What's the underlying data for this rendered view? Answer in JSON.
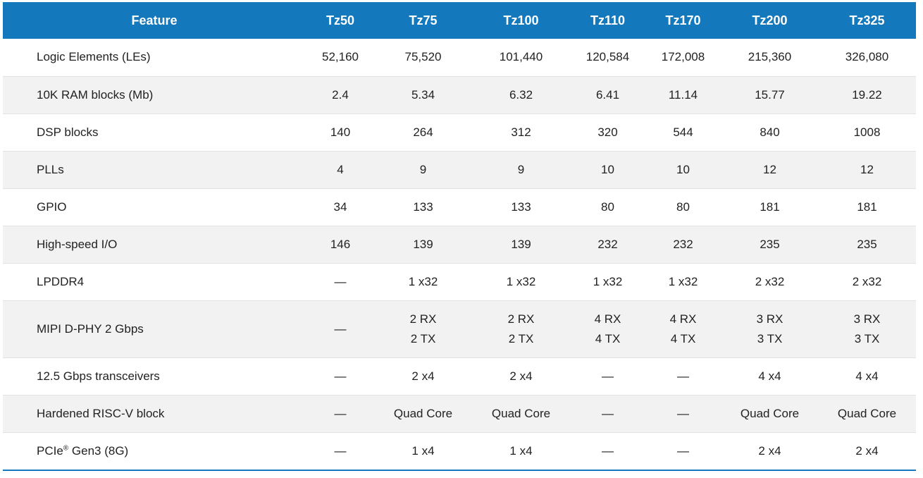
{
  "columns": [
    "Feature",
    "Tz50",
    "Tz75",
    "Tz100",
    "Tz110",
    "Tz170",
    "Tz200",
    "Tz325"
  ],
  "rows": [
    {
      "feature": "Logic Elements (LEs)",
      "values": [
        "52,160",
        "75,520",
        "101,440",
        "120,584",
        "172,008",
        "215,360",
        "326,080"
      ]
    },
    {
      "feature": "10K RAM blocks (Mb)",
      "values": [
        "2.4",
        "5.34",
        "6.32",
        "6.41",
        "11.14",
        "15.77",
        "19.22"
      ]
    },
    {
      "feature": "DSP blocks",
      "values": [
        "140",
        "264",
        "312",
        "320",
        "544",
        "840",
        "1008"
      ]
    },
    {
      "feature": "PLLs",
      "values": [
        "4",
        "9",
        "9",
        "10",
        "10",
        "12",
        "12"
      ]
    },
    {
      "feature": "GPIO",
      "values": [
        "34",
        "133",
        "133",
        "80",
        "80",
        "181",
        "181"
      ]
    },
    {
      "feature": "High-speed I/O",
      "values": [
        "146",
        "139",
        "139",
        "232",
        "232",
        "235",
        "235"
      ]
    },
    {
      "feature": "LPDDR4",
      "values": [
        "—",
        "1 x32",
        "1 x32",
        "1 x32",
        "1 x32",
        "2 x32",
        "2 x32"
      ]
    },
    {
      "feature": "MIPI D-PHY 2 Gbps",
      "values": [
        [
          "—"
        ],
        [
          "2 RX",
          "2 TX"
        ],
        [
          "2 RX",
          "2 TX"
        ],
        [
          "4 RX",
          "4 TX"
        ],
        [
          "4 RX",
          "4 TX"
        ],
        [
          "3 RX",
          "3 TX"
        ],
        [
          "3 RX",
          "3 TX"
        ]
      ]
    },
    {
      "feature": "12.5 Gbps transceivers",
      "values": [
        "—",
        "2 x4",
        "2 x4",
        "—",
        "—",
        "4 x4",
        "4 x4"
      ]
    },
    {
      "feature": "Hardened RISC-V block",
      "values": [
        "—",
        "Quad Core",
        "Quad Core",
        "—",
        "—",
        "Quad Core",
        "Quad Core"
      ]
    },
    {
      "feature": {
        "main": "PCIe",
        "sup": "®",
        "rest": " Gen3 (8G)"
      },
      "values": [
        "—",
        "1 x4",
        "1 x4",
        "—",
        "—",
        "2 x4",
        "2 x4"
      ]
    }
  ],
  "colors": {
    "header_bg": "#1478bd",
    "header_text": "#ffffff",
    "row_alt_bg": "#f2f2f2"
  }
}
